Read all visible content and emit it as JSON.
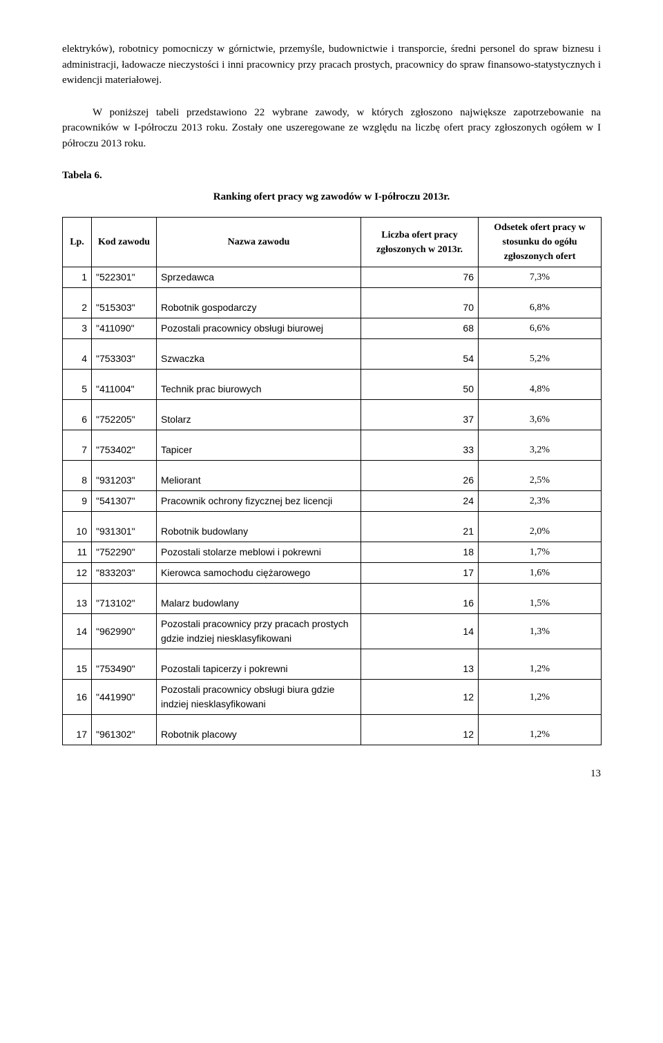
{
  "paragraph1": "elektryków), robotnicy pomocniczy w górnictwie, przemyśle, budownictwie i transporcie, średni personel do spraw biznesu i administracji, ładowacze nieczystości i inni pracownicy przy pracach prostych, pracownicy do spraw finansowo-statystycznych i ewidencji materiałowej.",
  "paragraph2": "W poniższej tabeli przedstawiono 22 wybrane zawody, w których zgłoszono największe zapotrzebowanie na pracowników w I-półroczu 2013 roku. Zostały one uszeregowane ze względu na liczbę ofert pracy zgłoszonych ogółem w I półroczu 2013 roku.",
  "table_label": "Tabela 6.",
  "table_title": "Ranking ofert pracy wg zawodów w I-półroczu 2013r.",
  "headers": {
    "lp": "Lp.",
    "kod": "Kod zawodu",
    "nazwa": "Nazwa zawodu",
    "liczba": "Liczba ofert pracy zgłoszonych w 2013r.",
    "odsetek": "Odsetek ofert pracy w stosunku do ogółu zgłoszonych ofert"
  },
  "rows": [
    {
      "lp": "1",
      "kod": "\"522301\"",
      "nazwa": "Sprzedawca",
      "liczba": "76",
      "ods": "7,3%",
      "group": 0
    },
    {
      "lp": "2",
      "kod": "\"515303\"",
      "nazwa": "Robotnik gospodarczy",
      "liczba": "70",
      "ods": "6,8%",
      "group": 1
    },
    {
      "lp": "3",
      "kod": "\"411090\"",
      "nazwa": "Pozostali pracownicy obsługi biurowej",
      "liczba": "68",
      "ods": "6,6%",
      "group": 1
    },
    {
      "lp": "4",
      "kod": "\"753303\"",
      "nazwa": "Szwaczka",
      "liczba": "54",
      "ods": "5,2%",
      "group": 2
    },
    {
      "lp": "5",
      "kod": "\"411004\"",
      "nazwa": "Technik prac biurowych",
      "liczba": "50",
      "ods": "4,8%",
      "group": 3
    },
    {
      "lp": "6",
      "kod": "\"752205\"",
      "nazwa": "Stolarz",
      "liczba": "37",
      "ods": "3,6%",
      "group": 4
    },
    {
      "lp": "7",
      "kod": "\"753402\"",
      "nazwa": "Tapicer",
      "liczba": "33",
      "ods": "3,2%",
      "group": 5
    },
    {
      "lp": "8",
      "kod": "\"931203\"",
      "nazwa": "Meliorant",
      "liczba": "26",
      "ods": "2,5%",
      "group": 6
    },
    {
      "lp": "9",
      "kod": "\"541307\"",
      "nazwa": "Pracownik ochrony fizycznej bez licencji",
      "liczba": "24",
      "ods": "2,3%",
      "group": 6
    },
    {
      "lp": "10",
      "kod": "\"931301\"",
      "nazwa": "Robotnik budowlany",
      "liczba": "21",
      "ods": "2,0%",
      "group": 7
    },
    {
      "lp": "11",
      "kod": "\"752290\"",
      "nazwa": "Pozostali stolarze meblowi i pokrewni",
      "liczba": "18",
      "ods": "1,7%",
      "group": 7
    },
    {
      "lp": "12",
      "kod": "\"833203\"",
      "nazwa": "Kierowca samochodu ciężarowego",
      "liczba": "17",
      "ods": "1,6%",
      "group": 7
    },
    {
      "lp": "13",
      "kod": "\"713102\"",
      "nazwa": "Malarz budowlany",
      "liczba": "16",
      "ods": "1,5%",
      "group": 8
    },
    {
      "lp": "14",
      "kod": "\"962990\"",
      "nazwa": "Pozostali pracownicy przy pracach prostych gdzie indziej niesklasyfikowani",
      "liczba": "14",
      "ods": "1,3%",
      "group": 8
    },
    {
      "lp": "15",
      "kod": "\"753490\"",
      "nazwa": "Pozostali tapicerzy i pokrewni",
      "liczba": "13",
      "ods": "1,2%",
      "group": 9
    },
    {
      "lp": "16",
      "kod": "\"441990\"",
      "nazwa": "Pozostali pracownicy obsługi biura gdzie indziej niesklasyfikowani",
      "liczba": "12",
      "ods": "1,2%",
      "group": 9
    },
    {
      "lp": "17",
      "kod": "\"961302\"",
      "nazwa": "Robotnik placowy",
      "liczba": "12",
      "ods": "1,2%",
      "group": 10
    }
  ],
  "page_number": "13"
}
